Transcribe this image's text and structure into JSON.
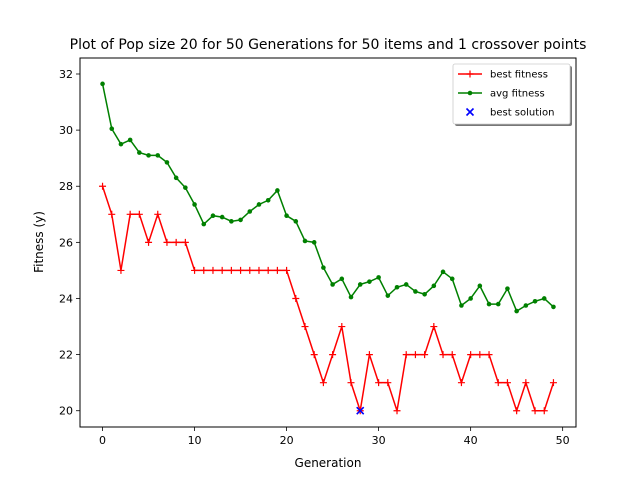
{
  "chart_data": {
    "type": "line",
    "title": "Plot of Pop size 20 for 50 Generations for 50 items and 1 crossover points",
    "xlabel": "Generation",
    "ylabel": "Fitness (y)",
    "xlim": [
      -2.45,
      51.45
    ],
    "ylim": [
      19.42,
      32.57
    ],
    "xticks": [
      0,
      10,
      20,
      30,
      40,
      50
    ],
    "yticks": [
      20,
      22,
      24,
      26,
      28,
      30,
      32
    ],
    "grid": false,
    "legend_position": "upper right",
    "x": [
      0,
      1,
      2,
      3,
      4,
      5,
      6,
      7,
      8,
      9,
      10,
      11,
      12,
      13,
      14,
      15,
      16,
      17,
      18,
      19,
      20,
      21,
      22,
      23,
      24,
      25,
      26,
      27,
      28,
      29,
      30,
      31,
      32,
      33,
      34,
      35,
      36,
      37,
      38,
      39,
      40,
      41,
      42,
      43,
      44,
      45,
      46,
      47,
      48,
      49
    ],
    "series": [
      {
        "name": "best fitness",
        "color": "#ff0000",
        "marker": "plus",
        "values": [
          28,
          27,
          25,
          27,
          27,
          26,
          27,
          26,
          26,
          26,
          25,
          25,
          25,
          25,
          25,
          25,
          25,
          25,
          25,
          25,
          25,
          24,
          23,
          22,
          21,
          22,
          23,
          21,
          20,
          22,
          21,
          21,
          20,
          22,
          22,
          22,
          23,
          22,
          22,
          21,
          22,
          22,
          22,
          21,
          21,
          20,
          21,
          20,
          20,
          21
        ]
      },
      {
        "name": "avg fitness",
        "color": "#008000",
        "marker": "dot",
        "values": [
          31.65,
          30.05,
          29.5,
          29.65,
          29.2,
          29.1,
          29.1,
          28.85,
          28.3,
          27.95,
          27.35,
          26.65,
          26.95,
          26.9,
          26.75,
          26.8,
          27.1,
          27.35,
          27.5,
          27.85,
          26.95,
          26.75,
          26.05,
          26.0,
          25.1,
          24.5,
          24.7,
          24.05,
          24.5,
          24.6,
          24.75,
          24.1,
          24.4,
          24.5,
          24.25,
          24.15,
          24.45,
          24.95,
          24.7,
          23.75,
          24.0,
          24.45,
          23.8,
          23.8,
          24.35,
          23.55,
          23.75,
          23.9,
          24.0,
          23.7
        ]
      }
    ],
    "best_solution": {
      "name": "best solution",
      "color": "#0000ff",
      "marker": "x",
      "x": 28,
      "y": 20
    }
  }
}
